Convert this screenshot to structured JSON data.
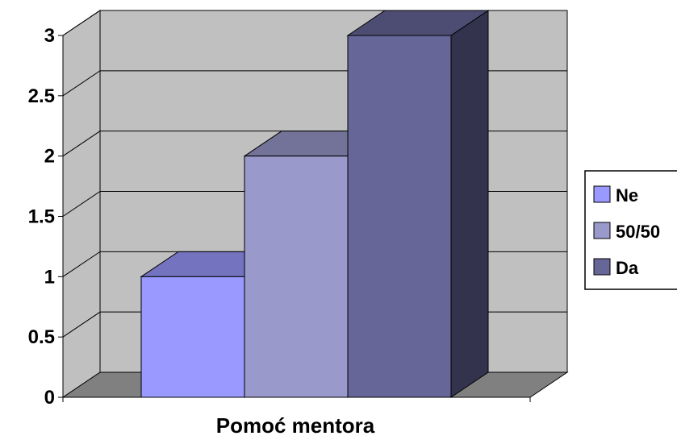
{
  "chart_data": {
    "type": "bar",
    "style": "3d-column",
    "categories": [
      "Pomoć mentora"
    ],
    "series": [
      {
        "name": "Ne",
        "values": [
          1
        ],
        "color": "#9999ff"
      },
      {
        "name": "50/50",
        "values": [
          2
        ],
        "color": "#9999cc"
      },
      {
        "name": "Da",
        "values": [
          3
        ],
        "color": "#666699"
      }
    ],
    "xlabel": "Pomoć mentora",
    "ylabel": "",
    "ylim": [
      0,
      3
    ],
    "yticks": [
      "0",
      "0.5",
      "1",
      "1.5",
      "2",
      "2.5",
      "3"
    ],
    "grid": true,
    "legend": "right",
    "colors": {
      "wall": "#c0c0c0",
      "floor": "#808080",
      "gridline": "#000000"
    }
  }
}
